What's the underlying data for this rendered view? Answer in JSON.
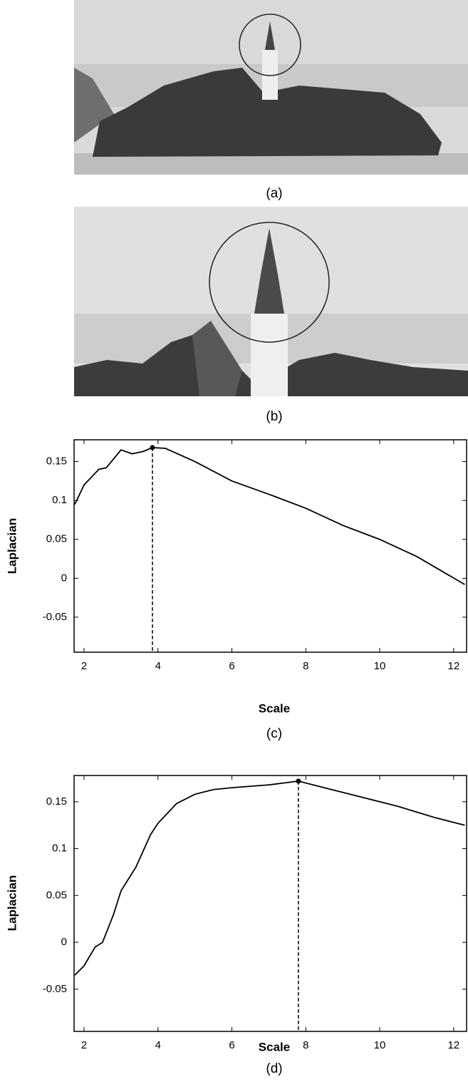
{
  "images": [
    {
      "caption": "(a)"
    },
    {
      "caption": "(b)"
    }
  ],
  "chart_data": [
    {
      "type": "line",
      "caption": "(c)",
      "xlabel": "Scale",
      "ylabel": "Laplacian",
      "color": "#000000",
      "x": [
        1.75,
        2,
        2.4,
        2.6,
        3,
        3.3,
        3.6,
        3.85,
        4.2,
        5,
        6,
        7,
        8,
        9,
        10,
        11,
        12.3
      ],
      "values": [
        0.095,
        0.12,
        0.14,
        0.142,
        0.165,
        0.16,
        0.163,
        0.168,
        0.167,
        0.15,
        0.125,
        0.108,
        0.09,
        0.068,
        0.05,
        0.028,
        -0.008
      ],
      "peak": {
        "x": 3.85,
        "y": 0.168
      },
      "xlim": [
        1.73,
        12.35
      ],
      "ylim": [
        -0.095,
        0.178
      ],
      "xticks": [
        2,
        4,
        6,
        8,
        10,
        12
      ],
      "yticks": [
        -0.05,
        0,
        0.05,
        0.1,
        0.15
      ]
    },
    {
      "type": "line",
      "caption": "(d)",
      "xlabel": "Scale",
      "ylabel": "Laplacian",
      "color": "#000000",
      "x": [
        1.75,
        2,
        2.3,
        2.5,
        2.8,
        3,
        3.4,
        3.8,
        4,
        4.5,
        5,
        5.5,
        6,
        7,
        7.8,
        8.5,
        9.5,
        10.5,
        11.5,
        12.3
      ],
      "values": [
        -0.035,
        -0.025,
        -0.005,
        0,
        0.03,
        0.055,
        0.08,
        0.115,
        0.127,
        0.148,
        0.158,
        0.163,
        0.165,
        0.168,
        0.172,
        0.165,
        0.155,
        0.145,
        0.133,
        0.125
      ],
      "peak": {
        "x": 7.8,
        "y": 0.172
      },
      "xlim": [
        1.73,
        12.35
      ],
      "ylim": [
        -0.095,
        0.178
      ],
      "xticks": [
        2,
        4,
        6,
        8,
        10,
        12
      ],
      "yticks": [
        -0.05,
        0,
        0.05,
        0.1,
        0.15
      ]
    }
  ]
}
